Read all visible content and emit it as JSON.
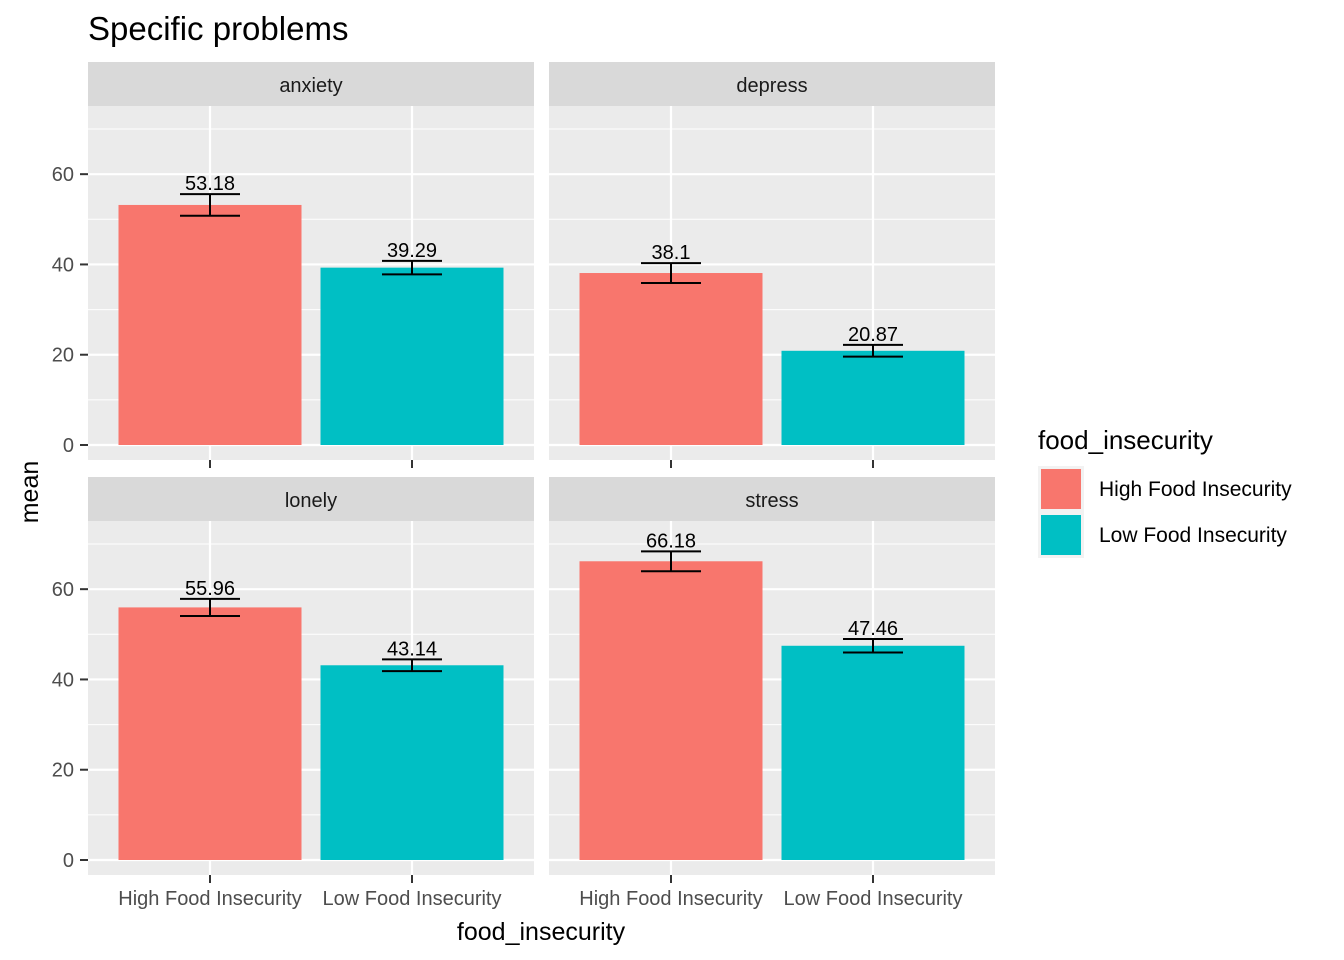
{
  "chart_data": {
    "type": "bar",
    "title": "Specific problems",
    "xlabel": "food_insecurity",
    "ylabel": "mean",
    "ylim": [
      0,
      72
    ],
    "y_ticks": [
      0,
      20,
      40,
      60
    ],
    "categories": [
      "High Food Insecurity",
      "Low Food Insecurity"
    ],
    "legend": {
      "title": "food_insecurity",
      "position": "right",
      "entries": [
        {
          "label": "High Food Insecurity",
          "color": "#F8766D"
        },
        {
          "label": "Low Food Insecurity",
          "color": "#00BFC4"
        }
      ]
    },
    "grid": true,
    "facets": [
      {
        "name": "anxiety",
        "values": [
          53.18,
          39.29
        ],
        "labels": [
          "53.18",
          "39.29"
        ],
        "errors": [
          2.4,
          1.5
        ]
      },
      {
        "name": "depress",
        "values": [
          38.1,
          20.87
        ],
        "labels": [
          "38.1",
          "20.87"
        ],
        "errors": [
          2.2,
          1.3
        ]
      },
      {
        "name": "lonely",
        "values": [
          55.96,
          43.14
        ],
        "labels": [
          "55.96",
          "43.14"
        ],
        "errors": [
          1.9,
          1.3
        ]
      },
      {
        "name": "stress",
        "values": [
          66.18,
          47.46
        ],
        "labels": [
          "66.18",
          "47.46"
        ],
        "errors": [
          2.2,
          1.5
        ]
      }
    ]
  }
}
